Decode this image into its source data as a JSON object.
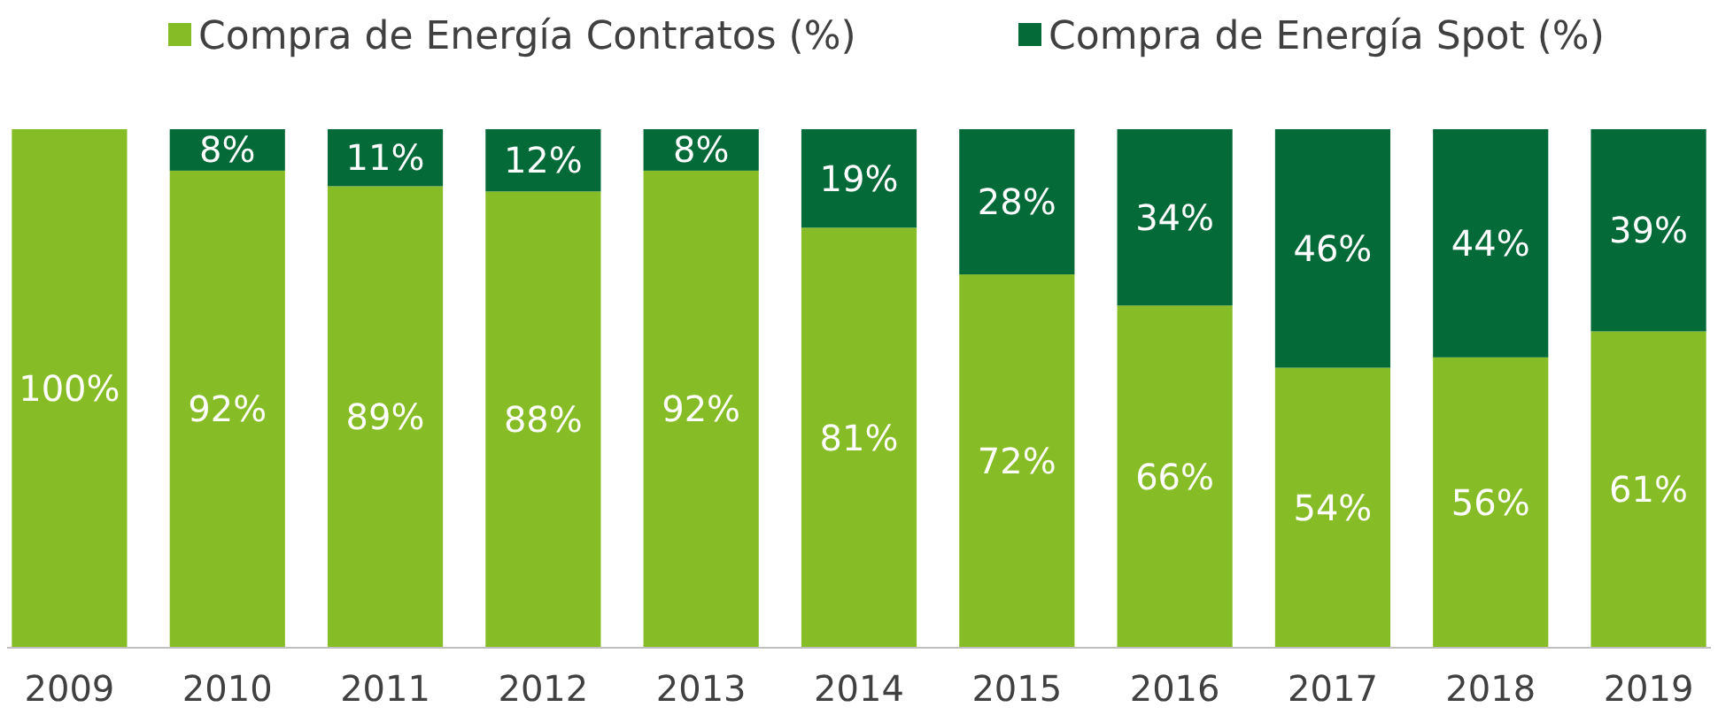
{
  "chart_data": {
    "type": "bar",
    "stacked": true,
    "legend": "top",
    "categories": [
      "2009",
      "2010",
      "2011",
      "2012",
      "2013",
      "2014",
      "2015",
      "2016",
      "2017",
      "2018",
      "2019"
    ],
    "series": [
      {
        "name": "Compra de Energía Contratos (%)",
        "color": "#86bc25",
        "values": [
          100,
          92,
          89,
          88,
          92,
          81,
          72,
          66,
          54,
          56,
          61
        ],
        "value_labels": [
          "100%",
          "92%",
          "89%",
          "88%",
          "92%",
          "81%",
          "72%",
          "66%",
          "54%",
          "56%",
          "61%"
        ]
      },
      {
        "name": "Compra de Energía Spot (%)",
        "color": "#046a38",
        "values": [
          0,
          8,
          11,
          12,
          8,
          19,
          28,
          34,
          46,
          44,
          39
        ],
        "value_labels": [
          null,
          "8%",
          "11%",
          "12%",
          "8%",
          "19%",
          "28%",
          "34%",
          "46%",
          "44%",
          "39%"
        ]
      }
    ]
  }
}
